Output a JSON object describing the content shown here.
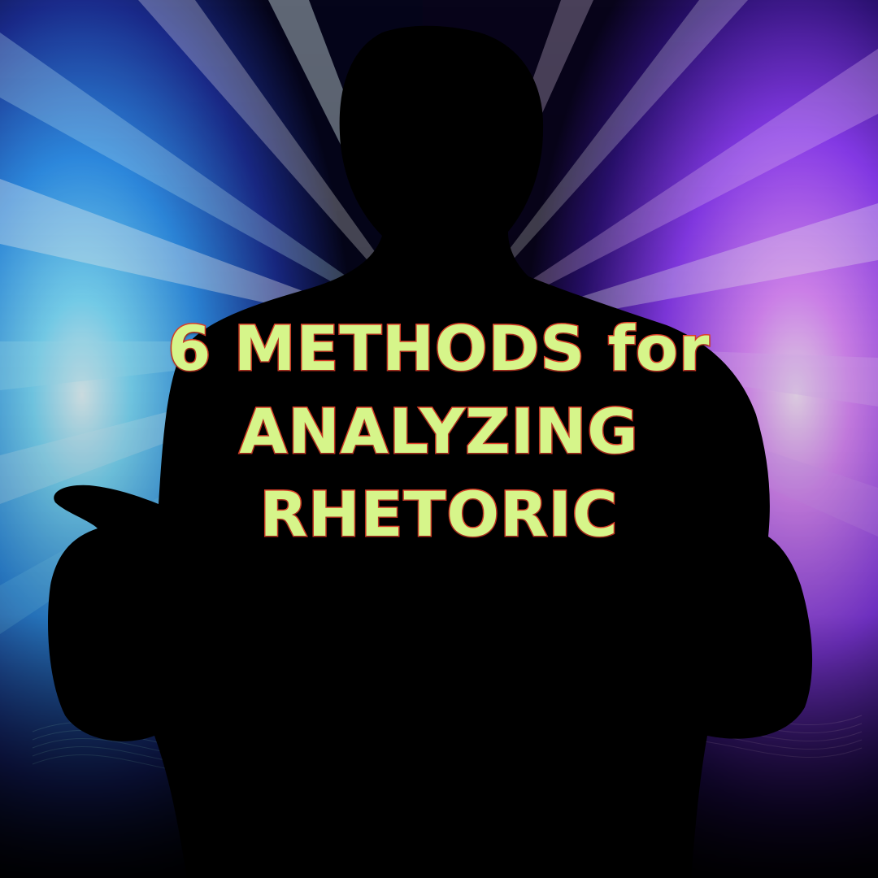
{
  "title": {
    "line1": "6 METHODS for",
    "line2": "ANALYZING",
    "line3": "RHETORIC"
  },
  "colors": {
    "text_fill": "#d6f58a",
    "text_outline": "#e0402a",
    "silhouette": "#000000",
    "left_glow": "#35c8ff",
    "right_glow": "#b34dff"
  }
}
